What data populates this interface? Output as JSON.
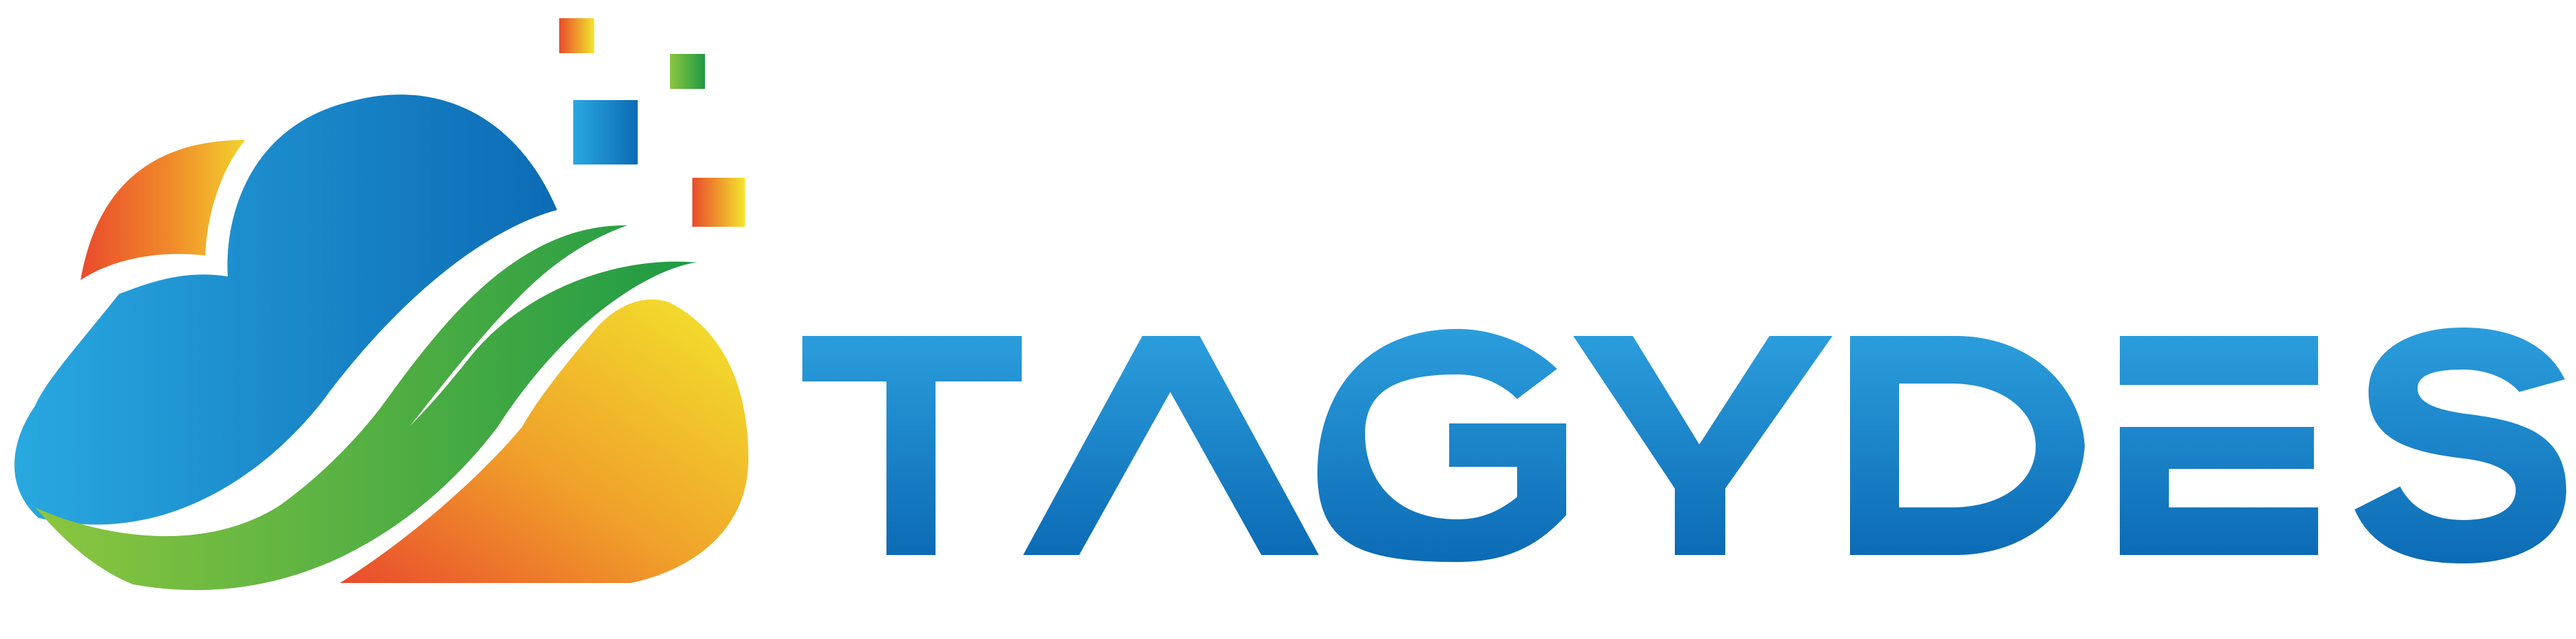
{
  "brand": {
    "wordmark": "TAGYDES"
  },
  "colors": {
    "blue_light": "#29A8E0",
    "blue_dark": "#0C6BB5",
    "green_light": "#8CC63F",
    "green_dark": "#1E9A45",
    "yellow": "#F2E62C",
    "orange": "#F08A2A",
    "red": "#E94A2C"
  },
  "icons": [
    "cloud-leaf-logo-icon",
    "pixel-squares-icon"
  ]
}
